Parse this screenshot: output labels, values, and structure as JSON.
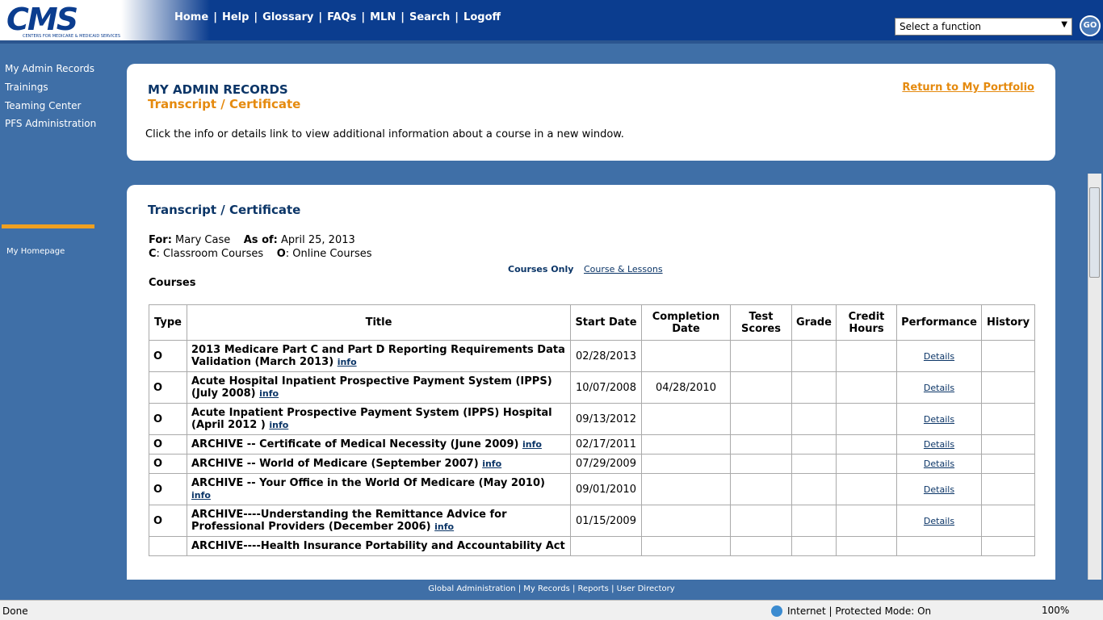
{
  "header": {
    "logo": "CMS",
    "logo_sub": "CENTERS FOR MEDICARE & MEDICAID SERVICES",
    "nav": [
      "Home",
      "Help",
      "Glossary",
      "FAQs",
      "MLN",
      "Search",
      "Logoff"
    ],
    "select": "Select a function",
    "go": "GO"
  },
  "sidebar": {
    "links": [
      "My Admin Records",
      "Trainings",
      "Teaming Center",
      "PFS Administration"
    ],
    "homepage": "My Homepage"
  },
  "top_panel": {
    "title": "MY ADMIN RECORDS",
    "subtitle": "Transcript / Certificate",
    "return_link": "Return to My Portfolio",
    "instructions": "Click the info or details link to view additional information about a course in a new window."
  },
  "main_panel": {
    "title": "Transcript / Certificate",
    "for_label": "For:",
    "for_value": "Mary Case",
    "as_of_label": "As of:",
    "as_of_value": "April 25, 2013",
    "c_label": "C",
    "c_text": ": Classroom Courses",
    "o_label": "O",
    "o_text": ": Online Courses",
    "view_current": "Courses Only",
    "view_link": "Course & Lessons",
    "section": "Courses",
    "table": {
      "columns": [
        "Type",
        "Title",
        "Start Date",
        "Completion Date",
        "Test Scores",
        "Grade",
        "Credit Hours",
        "Performance",
        "History"
      ],
      "rows": [
        {
          "type": "O",
          "title": "2013 Medicare Part C and Part D Reporting Requirements Data Validation (March 2013)",
          "info": "info",
          "start": "02/28/2013",
          "details": "Details"
        },
        {
          "type": "O",
          "title": "Acute Hospital Inpatient Prospective Payment System (IPPS) (July 2008)",
          "info": "info",
          "start": "10/07/2008",
          "completion": "04/28/2010",
          "details": "Details"
        },
        {
          "type": "O",
          "title": "Acute Inpatient Prospective Payment System (IPPS) Hospital (April 2012 )",
          "info": "info",
          "start": "09/13/2012",
          "details": "Details"
        },
        {
          "type": "O",
          "title": "ARCHIVE -- Certificate of Medical Necessity (June 2009)",
          "info": "info",
          "start": "02/17/2011",
          "details": "Details"
        },
        {
          "type": "O",
          "title": "ARCHIVE -- World of Medicare (September 2007)",
          "info": "info",
          "start": "07/29/2009",
          "details": "Details"
        },
        {
          "type": "O",
          "title": "ARCHIVE -- Your Office in the World Of Medicare (May 2010)",
          "info": "info",
          "start": "09/01/2010",
          "details": "Details"
        },
        {
          "type": "O",
          "title": "ARCHIVE----Understanding the Remittance Advice for Professional Providers (December 2006)",
          "info": "info",
          "start": "01/15/2009",
          "details": "Details"
        },
        {
          "title": "ARCHIVE----Health Insurance Portability and Accountability Act"
        }
      ]
    }
  },
  "footer": {
    "links": [
      "Global Administration",
      "My Records",
      "Reports",
      "User Directory"
    ]
  },
  "status_bar": {
    "status": "Done",
    "zone": "Internet | Protected Mode: On",
    "zoom": "100%"
  }
}
